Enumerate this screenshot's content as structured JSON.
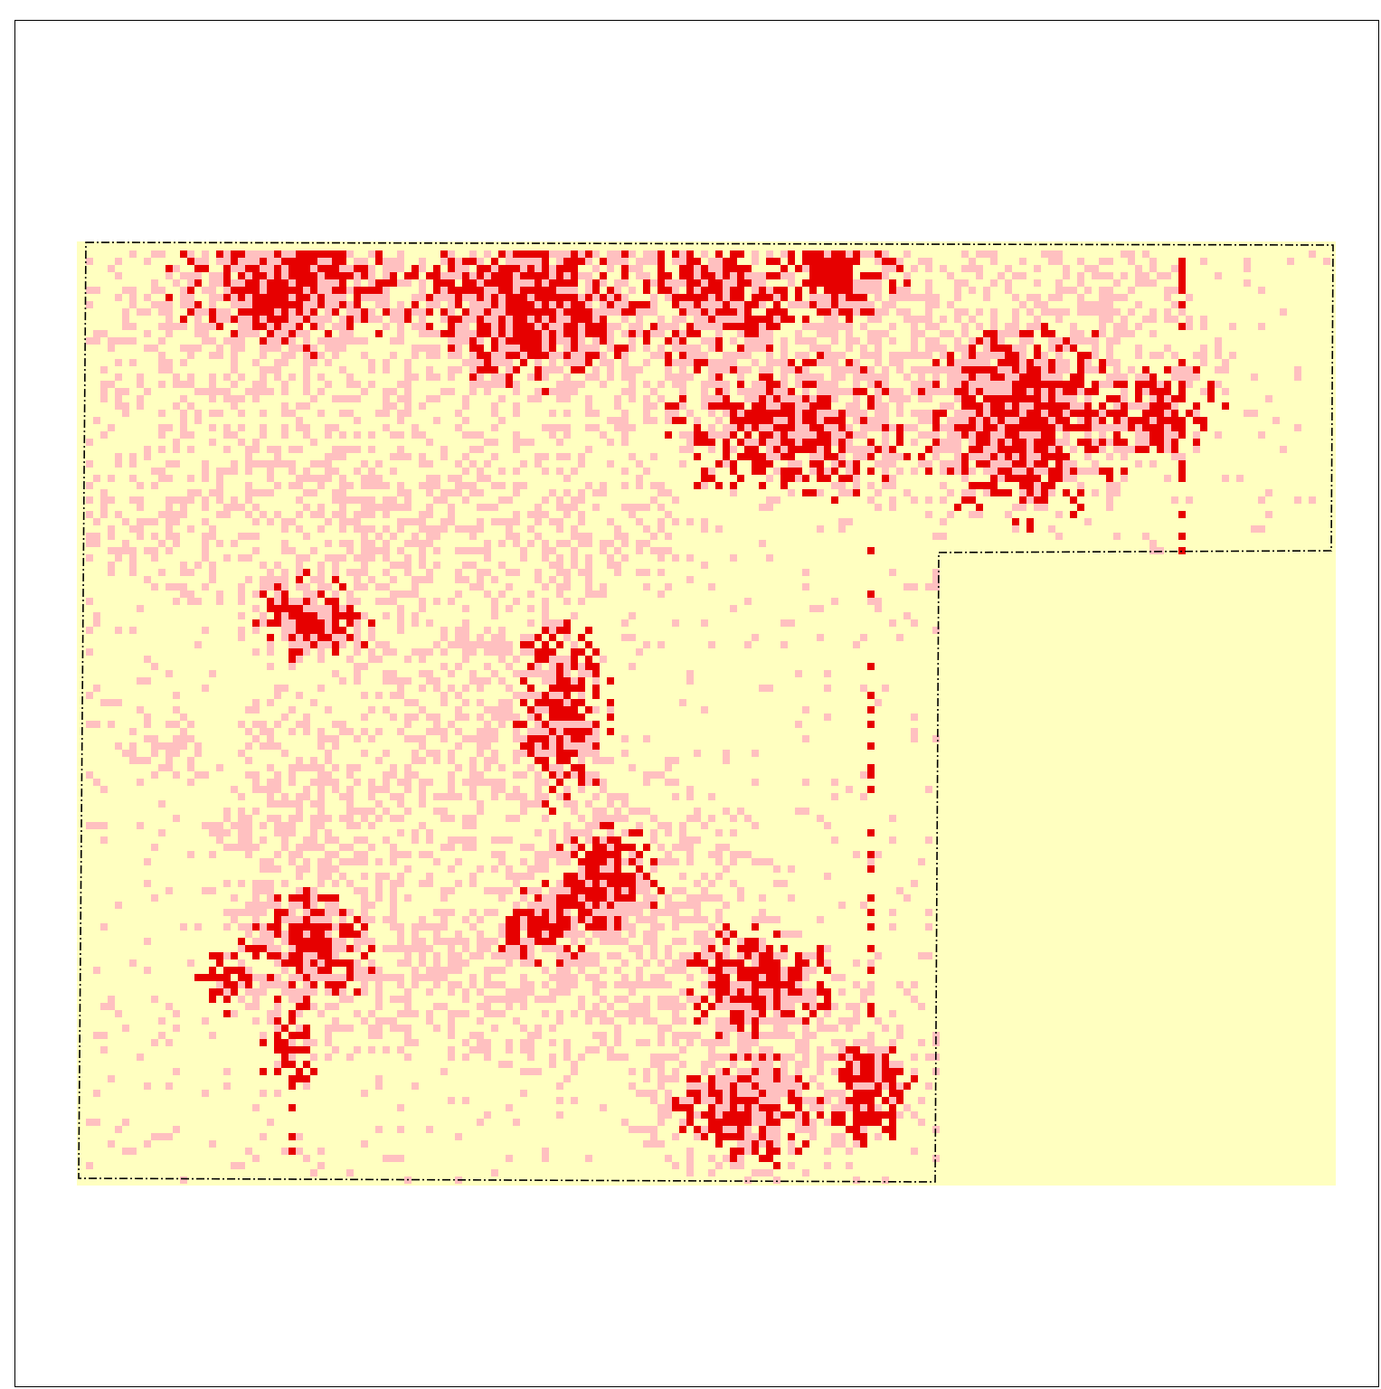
{
  "map": {
    "colors": {
      "background": "#ffffff",
      "low_density": "#ffffc0",
      "medium_density": "#ffc0c0",
      "high_density": "#e60000",
      "boundary": "#000000"
    },
    "boundary_style": "dash-dot",
    "boundary_shape": "L-shaped parcel (missing lower-right quadrant)"
  }
}
